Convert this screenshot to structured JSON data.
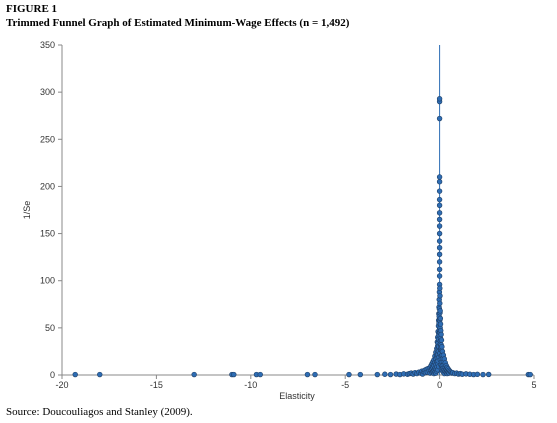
{
  "figure_label": "FIGURE 1",
  "title": "Trimmed Funnel Graph of Estimated Minimum-Wage Effects (n = 1,492)",
  "source": "Source: Doucouliagos and Stanley (2009).",
  "chart_data": {
    "type": "scatter",
    "xlabel": "Elasticity",
    "ylabel": "1/Se",
    "xlim": [
      -20,
      5
    ],
    "ylim": [
      0,
      350
    ],
    "x_ticks": [
      -20,
      -15,
      -10,
      -5,
      0,
      5
    ],
    "y_ticks": [
      0,
      50,
      100,
      150,
      200,
      250,
      300,
      350
    ],
    "x_tick_labels": [
      "-20",
      "-15",
      "-10",
      "-5",
      "0",
      "5"
    ],
    "y_tick_labels": [
      "0",
      "50",
      "100",
      "150",
      "200",
      "250",
      "300",
      "350"
    ],
    "vertical_reference_line_x": 0,
    "grid": false,
    "marker_color": "#2E6DB4",
    "marker_edge_color": "#1F3F66",
    "points": [
      [
        -19.3,
        0.5
      ],
      [
        -18.0,
        0.5
      ],
      [
        -13.0,
        0.5
      ],
      [
        -11.0,
        0.5
      ],
      [
        -10.9,
        0.5
      ],
      [
        -9.7,
        0.5
      ],
      [
        -9.5,
        0.5
      ],
      [
        -7.0,
        0.5
      ],
      [
        -6.6,
        0.5
      ],
      [
        -4.8,
        0.5
      ],
      [
        -4.2,
        0.5
      ],
      [
        -3.3,
        0.5
      ],
      [
        -2.9,
        0.8
      ],
      [
        -2.6,
        0.5
      ],
      [
        -2.3,
        1.0
      ],
      [
        -2.1,
        0.5
      ],
      [
        -1.9,
        1.2
      ],
      [
        -1.7,
        0.8
      ],
      [
        -1.6,
        1.5
      ],
      [
        -1.5,
        2.0
      ],
      [
        -1.4,
        1.0
      ],
      [
        -1.3,
        2.5
      ],
      [
        -1.2,
        1.5
      ],
      [
        -1.1,
        3.0
      ],
      [
        -1.0,
        2.0
      ],
      [
        -0.95,
        4.0
      ],
      [
        -0.9,
        1.0
      ],
      [
        -0.85,
        3.5
      ],
      [
        -0.8,
        5.0
      ],
      [
        -0.75,
        2.5
      ],
      [
        -0.7,
        6.0
      ],
      [
        -0.65,
        3.0
      ],
      [
        -0.6,
        7.0
      ],
      [
        -0.55,
        4.5
      ],
      [
        -0.5,
        8.0
      ],
      [
        -0.5,
        2.0
      ],
      [
        -0.45,
        10.0
      ],
      [
        -0.45,
        5.0
      ],
      [
        -0.4,
        12.0
      ],
      [
        -0.4,
        6.5
      ],
      [
        -0.4,
        2.5
      ],
      [
        -0.35,
        14.0
      ],
      [
        -0.35,
        8.0
      ],
      [
        -0.35,
        3.5
      ],
      [
        -0.3,
        16.0
      ],
      [
        -0.3,
        10.0
      ],
      [
        -0.3,
        5.0
      ],
      [
        -0.3,
        1.5
      ],
      [
        -0.25,
        20.0
      ],
      [
        -0.25,
        13.0
      ],
      [
        -0.25,
        7.0
      ],
      [
        -0.25,
        3.0
      ],
      [
        -0.2,
        24.0
      ],
      [
        -0.2,
        17.0
      ],
      [
        -0.2,
        11.0
      ],
      [
        -0.2,
        6.0
      ],
      [
        -0.2,
        2.0
      ],
      [
        -0.15,
        28.0
      ],
      [
        -0.15,
        21.0
      ],
      [
        -0.15,
        14.0
      ],
      [
        -0.15,
        8.5
      ],
      [
        -0.15,
        4.0
      ],
      [
        -0.12,
        35.0
      ],
      [
        -0.12,
        26.0
      ],
      [
        -0.12,
        18.0
      ],
      [
        -0.1,
        40.0
      ],
      [
        -0.1,
        31.0
      ],
      [
        -0.1,
        22.0
      ],
      [
        -0.1,
        12.0
      ],
      [
        -0.1,
        5.5
      ],
      [
        -0.08,
        46.0
      ],
      [
        -0.08,
        34.0
      ],
      [
        -0.08,
        15.0
      ],
      [
        -0.06,
        52.0
      ],
      [
        -0.06,
        38.0
      ],
      [
        -0.06,
        25.0
      ],
      [
        -0.05,
        58.0
      ],
      [
        -0.05,
        44.0
      ],
      [
        -0.05,
        9.0
      ],
      [
        -0.04,
        65.0
      ],
      [
        -0.04,
        30.0
      ],
      [
        -0.03,
        72.0
      ],
      [
        -0.03,
        55.0
      ],
      [
        -0.03,
        19.0
      ],
      [
        -0.02,
        80.0
      ],
      [
        -0.02,
        62.0
      ],
      [
        -0.02,
        42.0
      ],
      [
        -0.01,
        88.0
      ],
      [
        -0.01,
        70.0
      ],
      [
        -0.01,
        48.0
      ],
      [
        0.0,
        96.0
      ],
      [
        0.0,
        105.0
      ],
      [
        0.0,
        112.0
      ],
      [
        0.0,
        120.0
      ],
      [
        0.0,
        128.0
      ],
      [
        0.0,
        135.0
      ],
      [
        0.0,
        142.0
      ],
      [
        0.0,
        150.0
      ],
      [
        0.0,
        158.0
      ],
      [
        0.0,
        165.0
      ],
      [
        0.0,
        172.0
      ],
      [
        0.0,
        180.0
      ],
      [
        0.0,
        186.0
      ],
      [
        0.0,
        195.0
      ],
      [
        0.0,
        205.0
      ],
      [
        0.0,
        210.0
      ],
      [
        0.0,
        272.0
      ],
      [
        0.0,
        290.0
      ],
      [
        0.0,
        293.0
      ],
      [
        0.01,
        92.0
      ],
      [
        0.01,
        76.0
      ],
      [
        0.01,
        58.0
      ],
      [
        0.02,
        84.0
      ],
      [
        0.02,
        66.0
      ],
      [
        0.02,
        45.0
      ],
      [
        0.02,
        23.0
      ],
      [
        0.03,
        68.0
      ],
      [
        0.03,
        50.0
      ],
      [
        0.03,
        33.0
      ],
      [
        0.04,
        60.0
      ],
      [
        0.04,
        36.0
      ],
      [
        0.04,
        16.0
      ],
      [
        0.05,
        54.0
      ],
      [
        0.05,
        39.0
      ],
      [
        0.05,
        27.0
      ],
      [
        0.06,
        47.0
      ],
      [
        0.06,
        29.0
      ],
      [
        0.06,
        11.0
      ],
      [
        0.08,
        43.0
      ],
      [
        0.08,
        32.0
      ],
      [
        0.08,
        20.0
      ],
      [
        0.1,
        37.0
      ],
      [
        0.1,
        26.0
      ],
      [
        0.1,
        14.0
      ],
      [
        0.1,
        6.0
      ],
      [
        0.12,
        30.0
      ],
      [
        0.12,
        21.0
      ],
      [
        0.12,
        9.5
      ],
      [
        0.15,
        25.0
      ],
      [
        0.15,
        17.0
      ],
      [
        0.15,
        10.0
      ],
      [
        0.15,
        4.5
      ],
      [
        0.2,
        21.0
      ],
      [
        0.2,
        14.0
      ],
      [
        0.2,
        7.5
      ],
      [
        0.2,
        3.0
      ],
      [
        0.25,
        17.0
      ],
      [
        0.25,
        11.0
      ],
      [
        0.25,
        5.5
      ],
      [
        0.25,
        1.5
      ],
      [
        0.3,
        13.0
      ],
      [
        0.3,
        8.0
      ],
      [
        0.3,
        4.0
      ],
      [
        0.35,
        10.0
      ],
      [
        0.35,
        6.0
      ],
      [
        0.35,
        2.5
      ],
      [
        0.4,
        8.0
      ],
      [
        0.4,
        4.5
      ],
      [
        0.4,
        1.5
      ],
      [
        0.45,
        6.5
      ],
      [
        0.45,
        3.0
      ],
      [
        0.5,
        5.0
      ],
      [
        0.5,
        2.0
      ],
      [
        0.55,
        4.0
      ],
      [
        0.6,
        3.0
      ],
      [
        0.65,
        2.0
      ],
      [
        0.7,
        2.5
      ],
      [
        0.8,
        1.5
      ],
      [
        0.9,
        2.0
      ],
      [
        1.0,
        1.0
      ],
      [
        1.1,
        1.5
      ],
      [
        1.2,
        0.8
      ],
      [
        1.4,
        1.2
      ],
      [
        1.6,
        0.8
      ],
      [
        1.8,
        0.5
      ],
      [
        2.0,
        0.7
      ],
      [
        2.3,
        0.5
      ],
      [
        2.6,
        0.6
      ],
      [
        4.7,
        0.5
      ],
      [
        4.8,
        0.5
      ]
    ]
  }
}
